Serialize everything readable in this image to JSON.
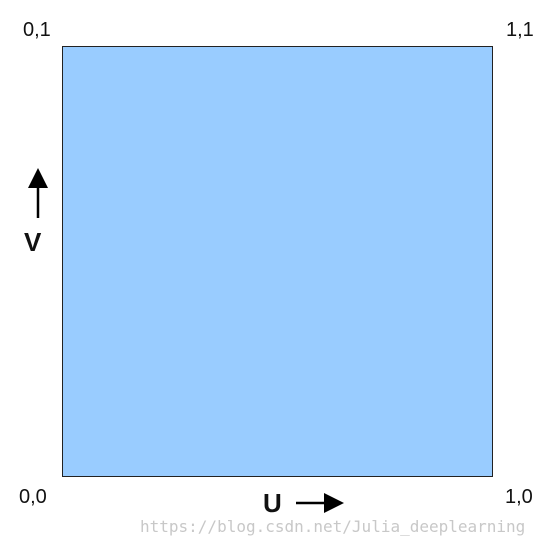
{
  "diagram": {
    "corners": {
      "top_left": "0,1",
      "top_right": "1,1",
      "bottom_left": "0,0",
      "bottom_right": "1,0"
    },
    "axes": {
      "u_label": "U",
      "v_label": "V"
    },
    "watermark": "https://blog.csdn.net/Julia_deeplearning"
  },
  "colors": {
    "square_fill": "#99ccff",
    "border": "#222222",
    "text": "#111111",
    "watermark": "#c8c8c8"
  }
}
